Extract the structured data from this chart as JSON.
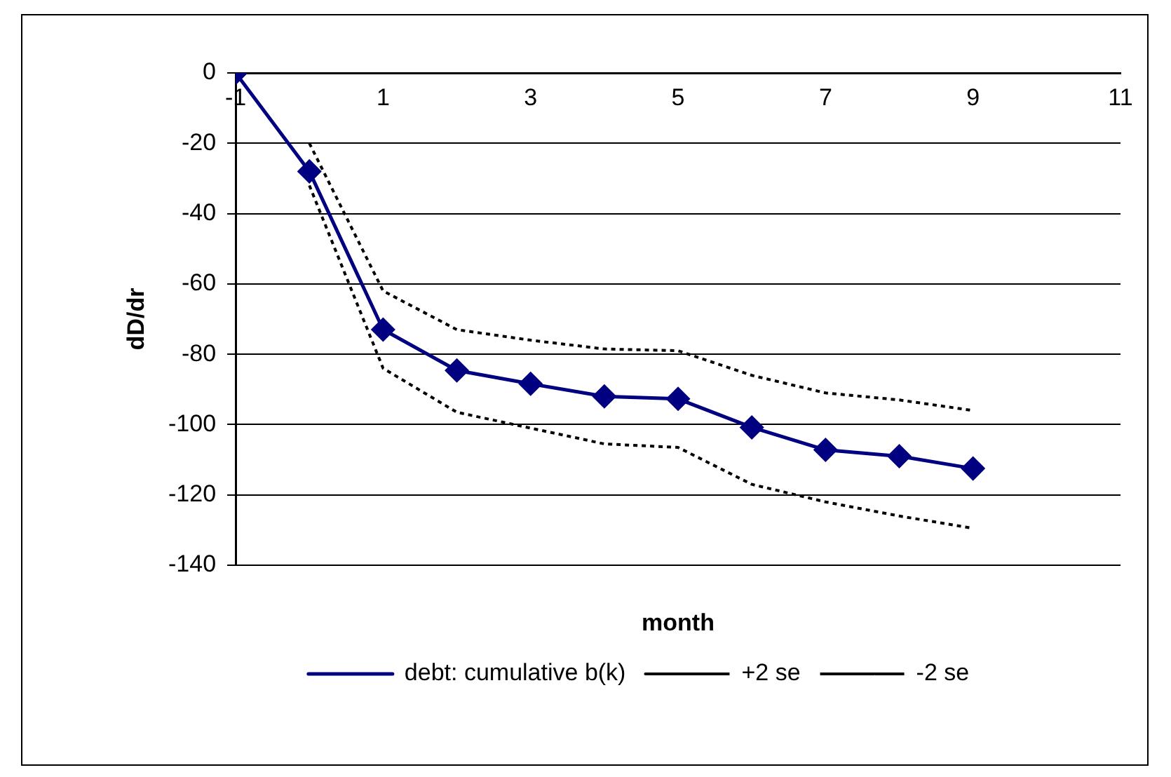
{
  "chart_data": {
    "type": "line",
    "xlabel": "month",
    "ylabel": "dD/dr",
    "series": [
      {
        "name": "debt: cumulative b(k)",
        "color": "#000080",
        "marker": "diamond",
        "line_style": "solid",
        "x": [
          -1,
          0,
          1,
          2,
          3,
          4,
          5,
          6,
          7,
          8,
          9
        ],
        "values": [
          0,
          -28,
          -73,
          -84.6,
          -88.4,
          -92,
          -92.7,
          -100.8,
          -107.2,
          -109,
          -112.5
        ]
      },
      {
        "name": "+2 se",
        "color": "#000000",
        "marker": "none",
        "line_style": "dotted",
        "x": [
          0,
          1,
          2,
          3,
          4,
          5,
          6,
          7,
          8,
          9
        ],
        "values": [
          -20,
          -62,
          -73,
          -76,
          -78.5,
          -79,
          -86,
          -91,
          -93,
          -96
        ]
      },
      {
        "name": "-2 se",
        "color": "#000000",
        "marker": "none",
        "line_style": "dotted",
        "x": [
          0,
          1,
          2,
          3,
          4,
          5,
          6,
          7,
          8,
          9
        ],
        "values": [
          -32,
          -84,
          -96.5,
          -101,
          -105.5,
          -106.5,
          -117,
          -122,
          -126,
          -129.5
        ]
      }
    ],
    "xlim": [
      -1,
      11
    ],
    "xticks": [
      -1,
      1,
      3,
      5,
      7,
      9,
      11
    ],
    "ylim": [
      -140,
      0
    ],
    "yticks": [
      0,
      -20,
      -40,
      -60,
      -80,
      -100,
      -120,
      -140
    ],
    "grid": "y",
    "legend": "bottom"
  }
}
